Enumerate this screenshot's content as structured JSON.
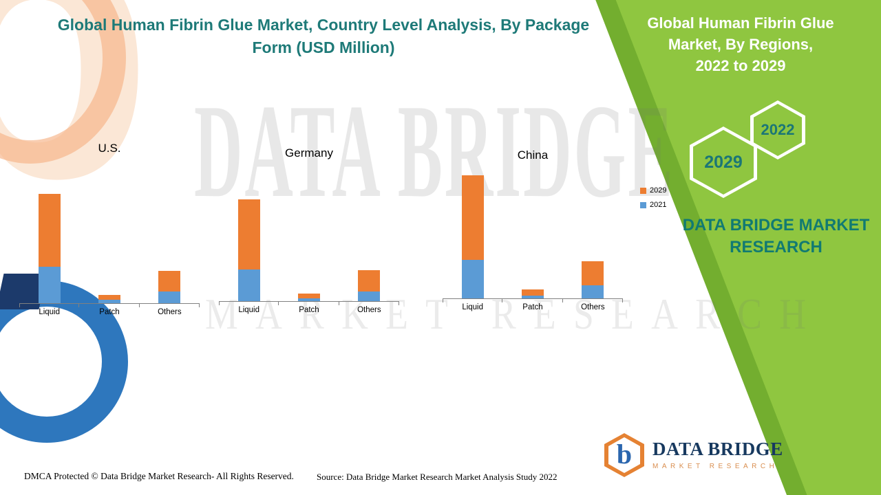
{
  "header": {
    "main_title_lines": [
      "Global Human Fibrin Glue Market, Country Level Analysis, By Package",
      "Form (USD Million)"
    ]
  },
  "side_panel": {
    "title_lines": [
      "Global Human Fibrin Glue",
      "Market, By Regions,",
      "2022 to 2029"
    ],
    "hexagons": [
      {
        "year": "2029"
      },
      {
        "year": "2022"
      }
    ],
    "brand_lines": [
      "DATA BRIDGE MARKET",
      "RESEARCH"
    ]
  },
  "legend": {
    "items": [
      {
        "label": "2029",
        "color": "#ED7D31"
      },
      {
        "label": "2021",
        "color": "#5B9BD5"
      }
    ]
  },
  "chart_data": [
    {
      "type": "bar",
      "title": "U.S.",
      "stacked": true,
      "categories": [
        "Liquid",
        "Patch",
        "Others"
      ],
      "series": [
        {
          "name": "2021",
          "color": "#5B9BD5",
          "values": [
            53,
            5,
            17
          ]
        },
        {
          "name": "2029",
          "color": "#ED7D31",
          "values": [
            106,
            7,
            30
          ]
        }
      ],
      "ylabel": "USD Million",
      "axis_numeric_labels": false,
      "note": "No numeric axis shown; values estimated from relative bar heights"
    },
    {
      "type": "bar",
      "title": "Germany",
      "stacked": true,
      "categories": [
        "Liquid",
        "Patch",
        "Others"
      ],
      "series": [
        {
          "name": "2021",
          "color": "#5B9BD5",
          "values": [
            46,
            4,
            14
          ]
        },
        {
          "name": "2029",
          "color": "#ED7D31",
          "values": [
            102,
            7,
            31
          ]
        }
      ],
      "ylabel": "USD Million",
      "axis_numeric_labels": false,
      "note": "No numeric axis shown; values estimated from relative bar heights"
    },
    {
      "type": "bar",
      "title": "China",
      "stacked": true,
      "categories": [
        "Liquid",
        "Patch",
        "Others"
      ],
      "series": [
        {
          "name": "2021",
          "color": "#5B9BD5",
          "values": [
            56,
            4,
            19
          ]
        },
        {
          "name": "2029",
          "color": "#ED7D31",
          "values": [
            123,
            9,
            35
          ]
        }
      ],
      "ylabel": "USD Million",
      "axis_numeric_labels": false,
      "note": "No numeric axis shown; values estimated from relative bar heights"
    }
  ],
  "watermark": {
    "line1": "DATA BRIDGE",
    "line2": "MARKET RESEARCH"
  },
  "footer": {
    "dmca": "DMCA Protected © Data Bridge Market Research- All Rights Reserved.",
    "source": "Source: Data Bridge Market Research Market Analysis Study 2022"
  },
  "logo": {
    "mark_letter": "b",
    "title": "DATA BRIDGE",
    "subtitle": "MARKET RESEARCH"
  },
  "colors": {
    "accent_teal": "#1E7A78",
    "brand_teal": "#117A72",
    "panel_green": "#8FC640",
    "panel_green_dark": "#73AE2F",
    "bar_orange": "#ED7D31",
    "bar_blue": "#5B9BD5",
    "logo_navy": "#17395F",
    "logo_orange": "#E58233"
  }
}
